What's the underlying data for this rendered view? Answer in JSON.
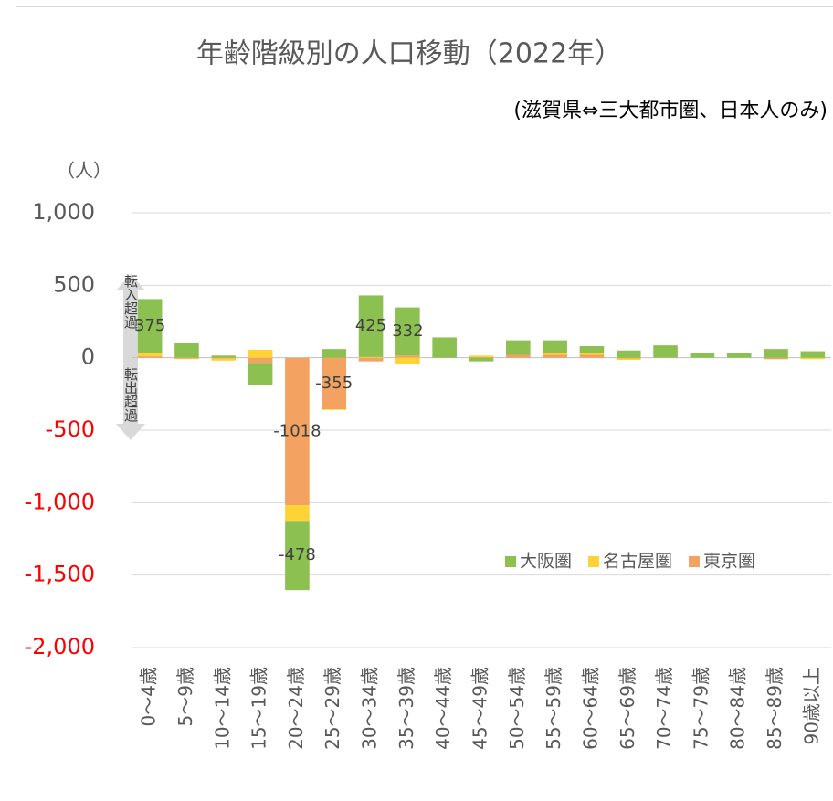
{
  "chart_data": {
    "type": "stacked_bar",
    "title": "年齢階級別の人口移動（2022年）",
    "subtitle": "(滋賀県⇔三大都市圏、日本人のみ)",
    "y_axis_label": "（人）",
    "annotations": [
      "転入超過",
      "転出超過"
    ],
    "categories": [
      "0～4歳",
      "5～9歳",
      "10～14歳",
      "15～19歳",
      "20～24歳",
      "25～29歳",
      "30～34歳",
      "35～39歳",
      "40～44歳",
      "45～49歳",
      "50～54歳",
      "55～59歳",
      "60～64歳",
      "65～69歳",
      "70～74歳",
      "75～79歳",
      "80～84歳",
      "85～89歳",
      "90歳以上"
    ],
    "series": [
      {
        "name": "大阪圏",
        "color": "#8cc152",
        "values": [
          375,
          100,
          15,
          -155,
          -478,
          60,
          425,
          332,
          140,
          -25,
          100,
          90,
          50,
          50,
          85,
          30,
          30,
          60,
          45
        ],
        "value_labels": [
          "375",
          null,
          null,
          null,
          "-478",
          null,
          "425",
          "332",
          null,
          null,
          null,
          null,
          null,
          null,
          null,
          null,
          null,
          null,
          null
        ]
      },
      {
        "name": "名古屋圏",
        "color": "#ffd335",
        "values": [
          20,
          -5,
          -15,
          55,
          -108,
          -5,
          5,
          -45,
          0,
          10,
          0,
          10,
          10,
          -10,
          0,
          0,
          0,
          0,
          -10
        ]
      },
      {
        "name": "東京圏",
        "color": "#f4a261",
        "values": [
          10,
          -5,
          -5,
          -35,
          -1018,
          -355,
          -25,
          15,
          0,
          5,
          20,
          20,
          20,
          -5,
          0,
          0,
          0,
          -10,
          0
        ],
        "value_labels": [
          null,
          null,
          null,
          null,
          "-1018",
          "-355",
          null,
          null,
          null,
          null,
          null,
          null,
          null,
          null,
          null,
          null,
          null,
          null,
          null
        ]
      }
    ],
    "ylim": [
      -2000,
      1000
    ],
    "yticks": [
      {
        "value": 1000,
        "label": "1,000"
      },
      500,
      0,
      -500,
      {
        "value": -1000,
        "label": "-1,000"
      },
      {
        "value": -1500,
        "label": "-1,500"
      },
      {
        "value": -2000,
        "label": "-2,000"
      }
    ],
    "negative_tick_color": "#ff0000",
    "grid": true,
    "legend": "lower right"
  }
}
